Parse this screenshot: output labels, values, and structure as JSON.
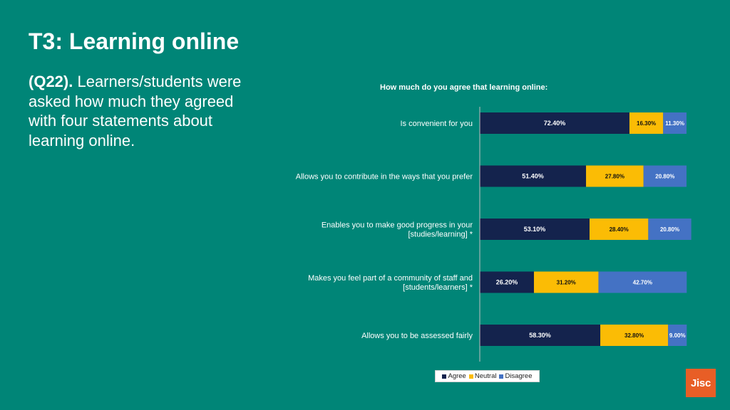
{
  "slide": {
    "title": "T3: Learning online",
    "intro_bold": "(Q22).",
    "intro_text": " Learners/students were asked how much they agreed with four statements about learning online."
  },
  "logo_text": "Jisc",
  "chart_data": {
    "type": "bar",
    "orientation": "horizontal",
    "stacked": true,
    "title": "How much do you agree that learning online:",
    "categories": [
      "Is convenient for you",
      "Allows you to contribute in the ways that you prefer",
      "Enables you to make good progress in your [studies/learning] *",
      "Makes you feel part of a community of staff and [students/learners] *",
      "Allows you to be assessed fairly"
    ],
    "category_lines": [
      [
        "Is convenient for you"
      ],
      [
        "Allows you to contribute in the ways that you prefer"
      ],
      [
        "Enables you to make good progress in your",
        "[studies/learning] *"
      ],
      [
        "Makes you feel part of a community of staff and",
        "[students/learners] *"
      ],
      [
        "Allows you to be assessed fairly"
      ]
    ],
    "series": [
      {
        "name": "Agree",
        "color": "#14234d",
        "label_color": "#ffffff",
        "values": [
          72.4,
          51.4,
          53.1,
          26.2,
          58.3
        ],
        "labels": [
          "72.40%",
          "51.40%",
          "53.10%",
          "26.20%",
          "58.30%"
        ]
      },
      {
        "name": "Neutral",
        "color": "#fbbc05",
        "label_color": "#111111",
        "values": [
          16.3,
          27.8,
          28.4,
          31.2,
          32.8
        ],
        "labels": [
          "16.30%",
          "27.80%",
          "28.40%",
          "31.20%",
          "32.80%"
        ]
      },
      {
        "name": "Disagree",
        "color": "#4472c4",
        "label_color": "#ffffff",
        "values": [
          11.3,
          20.8,
          20.8,
          42.7,
          9.0
        ],
        "labels": [
          "11.30%",
          "20.80%",
          "20.80%",
          "42.70%",
          "9.00%"
        ]
      }
    ],
    "xlim": [
      0,
      100
    ],
    "grid": false,
    "legend_position": "bottom"
  }
}
